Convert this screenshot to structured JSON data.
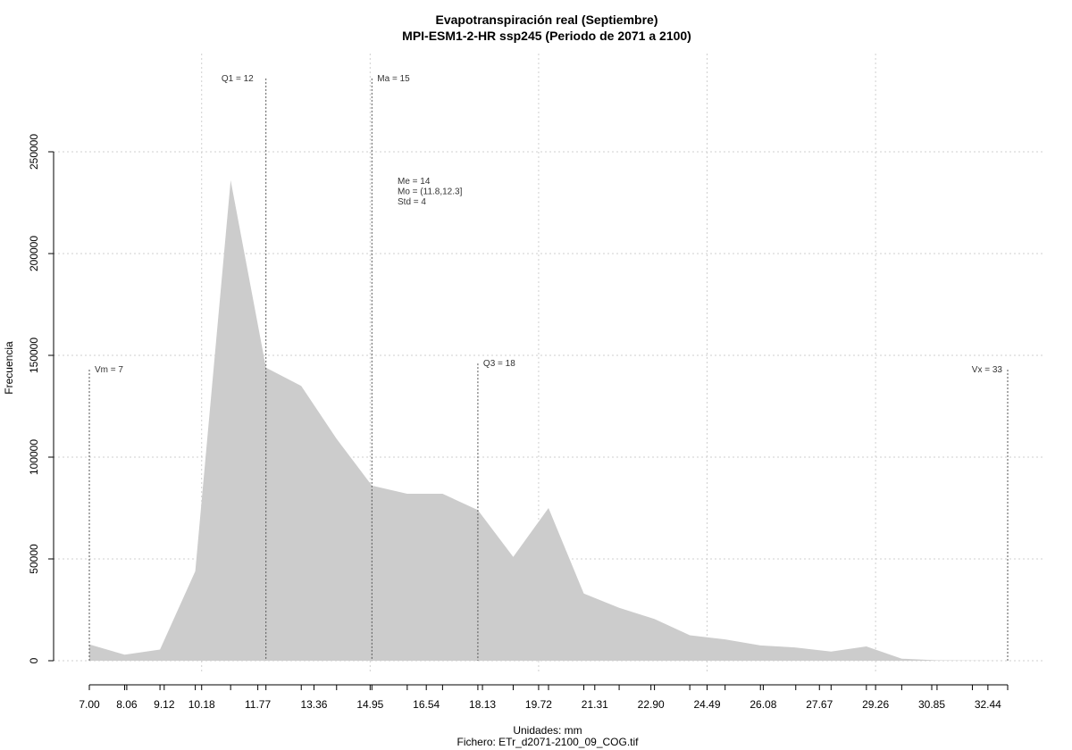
{
  "chart_data": {
    "type": "area",
    "title": "Evapotranspiración real (Septiembre)",
    "subtitle": "MPI-ESM1-2-HR ssp245 (Periodo de 2071 a 2100)",
    "xlabel": "Unidades: mm",
    "ylabel": "Frecuencia",
    "file_label": "Fichero: ETr_d2071-2100_09_COG.tif",
    "xlim": [
      7.0,
      33.0
    ],
    "ylim": [
      0,
      250000
    ],
    "x_tick_values": [
      7.0,
      8.06,
      9.12,
      10.18,
      11.77,
      13.36,
      14.95,
      16.54,
      18.13,
      19.72,
      21.31,
      22.9,
      24.49,
      26.08,
      27.67,
      29.26,
      30.85,
      32.44
    ],
    "x_tick_labels": [
      "7.00",
      "8.06",
      "9.12",
      "10.18",
      "11.77",
      "13.36",
      "14.95",
      "16.54",
      "18.13",
      "19.72",
      "21.31",
      "22.90",
      "24.49",
      "26.08",
      "27.67",
      "29.26",
      "30.85",
      "32.44"
    ],
    "y_tick_values": [
      0,
      50000,
      100000,
      150000,
      200000,
      250000
    ],
    "y_tick_labels": [
      "0",
      "50000",
      "100000",
      "150000",
      "200000",
      "250000"
    ],
    "x": [
      7.0,
      8.0,
      9.0,
      10.0,
      11.0,
      12.0,
      13.0,
      14.0,
      15.0,
      16.0,
      17.0,
      18.0,
      19.0,
      20.0,
      21.0,
      22.0,
      23.0,
      24.0,
      25.0,
      26.0,
      27.0,
      28.0,
      29.0,
      30.0,
      31.0,
      32.0,
      33.0
    ],
    "y": [
      8000,
      3000,
      5500,
      44000,
      236000,
      144000,
      135000,
      109000,
      86000,
      82000,
      82000,
      74000,
      51000,
      75000,
      33000,
      26000,
      20500,
      12500,
      10500,
      7500,
      6500,
      4500,
      7000,
      1000,
      200,
      100,
      0
    ],
    "fill_color": "#cccccc",
    "grid": true,
    "vlines": [
      {
        "label": "Vm = 7",
        "x": 7.0,
        "label_y": 143000
      },
      {
        "label": "Q1 = 12",
        "x": 12.0,
        "label_y": 286000
      },
      {
        "label": "Ma = 15",
        "x": 15.0,
        "label_y": 286000
      },
      {
        "label": "Q3 = 18",
        "x": 18.0,
        "label_y": 146000
      },
      {
        "label": "Vx = 33",
        "x": 33.0,
        "label_y": 143000
      }
    ],
    "stats": [
      "Me = 14",
      "Mo = (11.8,12.3]",
      "Std = 4"
    ]
  }
}
